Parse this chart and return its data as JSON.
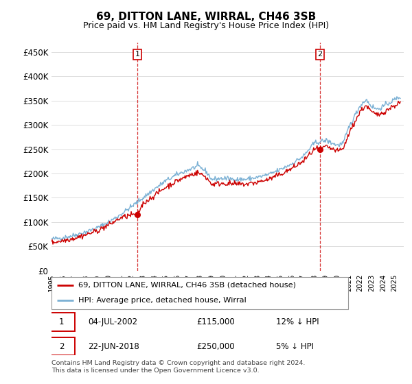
{
  "title": "69, DITTON LANE, WIRRAL, CH46 3SB",
  "subtitle": "Price paid vs. HM Land Registry's House Price Index (HPI)",
  "ylabel_ticks": [
    "£0",
    "£50K",
    "£100K",
    "£150K",
    "£200K",
    "£250K",
    "£300K",
    "£350K",
    "£400K",
    "£450K"
  ],
  "ytick_values": [
    0,
    50000,
    100000,
    150000,
    200000,
    250000,
    300000,
    350000,
    400000,
    450000
  ],
  "ylim": [
    0,
    470000
  ],
  "xlim_start": 1995.0,
  "xlim_end": 2025.8,
  "sale1_x": 2002.5,
  "sale1_y": 115000,
  "sale2_x": 2018.47,
  "sale2_y": 250000,
  "legend_line1": "69, DITTON LANE, WIRRAL, CH46 3SB (detached house)",
  "legend_line2": "HPI: Average price, detached house, Wirral",
  "annotation1_date": "04-JUL-2002",
  "annotation1_price": "£115,000",
  "annotation1_hpi": "12% ↓ HPI",
  "annotation2_date": "22-JUN-2018",
  "annotation2_price": "£250,000",
  "annotation2_hpi": "5% ↓ HPI",
  "footer": "Contains HM Land Registry data © Crown copyright and database right 2024.\nThis data is licensed under the Open Government Licence v3.0.",
  "red_line_color": "#cc0000",
  "blue_line_color": "#7ab0d4",
  "background_color": "#ffffff",
  "grid_color": "#dddddd",
  "title_fontsize": 11,
  "subtitle_fontsize": 9
}
